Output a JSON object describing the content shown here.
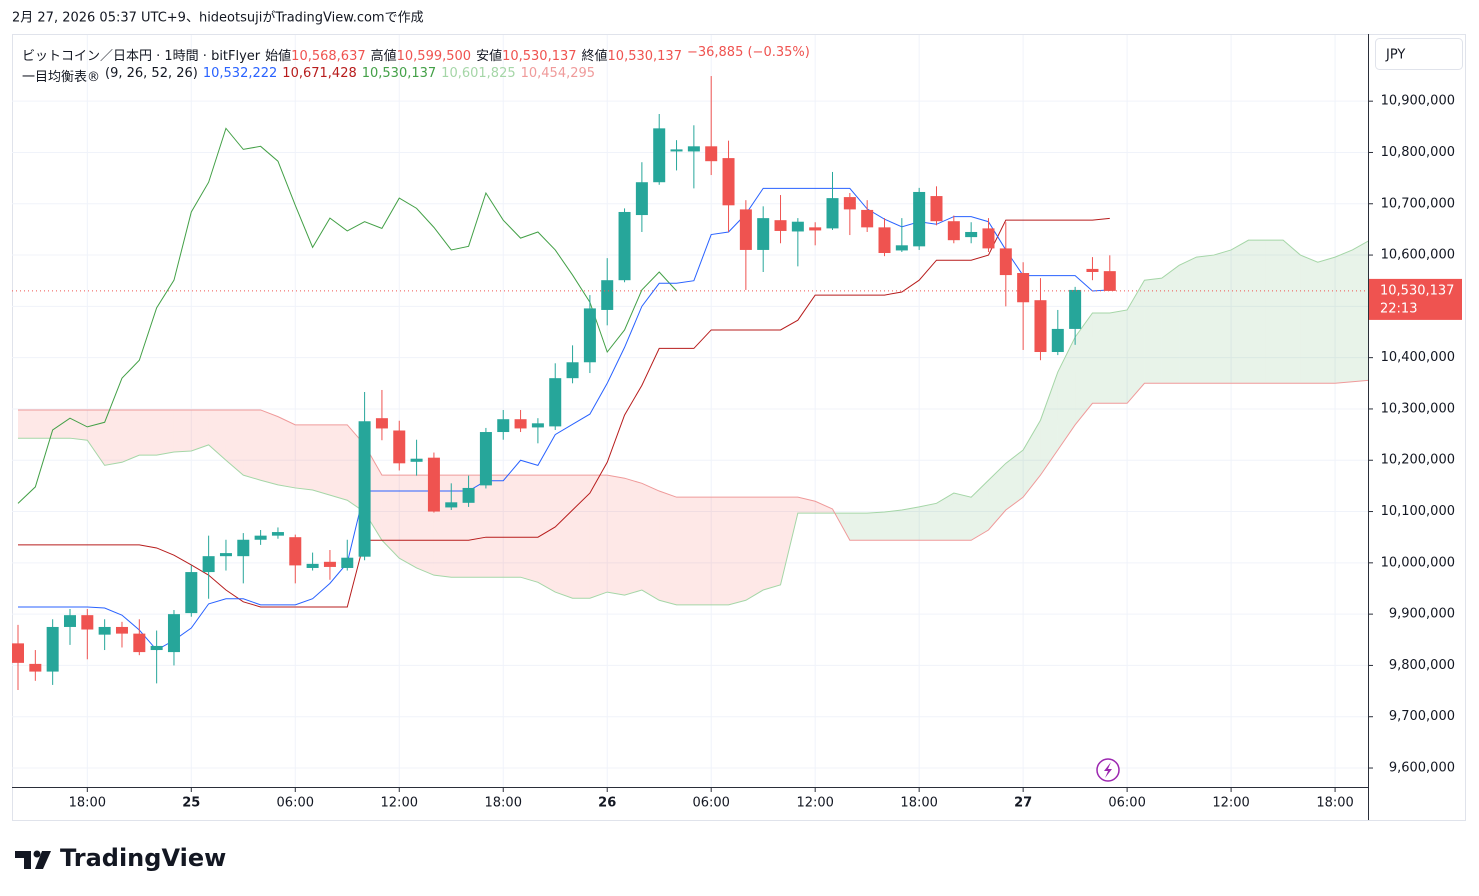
{
  "header": {
    "attribution": "2月 27, 2026 05:37 UTC+9、hideotsujiがTradingView.comで作成",
    "symbol": "ビットコイン／日本円 · 1時間 · bitFlyer",
    "ohlc": [
      {
        "label": "始値",
        "value": "10,568,637"
      },
      {
        "label": "高値",
        "value": "10,599,500"
      },
      {
        "label": "安値",
        "value": "10,530,137"
      },
      {
        "label": "終値",
        "value": "10,530,137"
      }
    ],
    "change": "−36,885 (−0.35%)",
    "indicator": "一目均衡表®",
    "params": "(9, 26, 52, 26)",
    "indicator_values": [
      {
        "value": "10,532,222",
        "color": "#2962ff"
      },
      {
        "value": "10,671,428",
        "color": "#b71c1c"
      },
      {
        "value": "10,530,137",
        "color": "#43a047"
      },
      {
        "value": "10,601,825",
        "color": "#a5d6a7"
      },
      {
        "value": "10,454,295",
        "color": "#ef9a9a"
      }
    ]
  },
  "currency": "JPY",
  "logo": "TradingView",
  "chart_data": {
    "type": "candlestick",
    "categories": [
      null,
      null,
      null,
      null,
      "18:00",
      null,
      null,
      null,
      null,
      null,
      "25",
      null,
      null,
      null,
      null,
      null,
      "06:00",
      null,
      null,
      null,
      null,
      null,
      "12:00",
      null,
      null,
      null,
      null,
      null,
      "18:00",
      null,
      null,
      null,
      null,
      null,
      "26",
      null,
      null,
      null,
      null,
      null,
      "06:00",
      null,
      null,
      null,
      null,
      null,
      "12:00",
      null,
      null,
      null,
      null,
      null,
      "18:00",
      null,
      null,
      null,
      null,
      null,
      "27",
      null,
      null,
      null,
      null,
      null,
      "06:00",
      null,
      null,
      null,
      null,
      null,
      "12:00",
      null,
      null,
      null,
      null,
      null,
      "18:00",
      null,
      null
    ],
    "open": [
      9843000,
      9803000,
      9788000,
      9875000,
      9898000,
      9860000,
      9875000,
      9862000,
      9830000,
      9826000,
      9902000,
      9982000,
      10013000,
      10013000,
      10045000,
      10053000,
      10050000,
      9990000,
      10002000,
      9990000,
      10012000,
      10282000,
      10258000,
      10197000,
      10205000,
      10108000,
      10117000,
      10151000,
      10255000,
      10280000,
      10264000,
      10266000,
      10360000,
      10391000,
      10493000,
      10551000,
      10678000,
      10742000,
      10802000,
      10802000,
      10812000,
      10789000,
      10689000,
      10610000,
      10668000,
      10646000,
      10654000,
      10652000,
      10713000,
      10688000,
      10654000,
      10609000,
      10617000,
      10715000,
      10666000,
      10635000,
      10652000,
      10613000,
      10565000,
      10512000,
      10411000,
      10456000,
      10573000,
      10568637,
      null,
      null,
      null,
      null,
      null,
      null,
      null,
      null,
      null,
      null,
      null,
      null,
      null,
      null,
      null
    ],
    "high": [
      9879000,
      9830000,
      9890000,
      9910000,
      9910000,
      9890000,
      9885000,
      9890000,
      9868000,
      9908000,
      9995000,
      10053000,
      10045000,
      10058000,
      10064000,
      10069000,
      10055000,
      10020000,
      10025000,
      10045000,
      10333000,
      10337000,
      10277000,
      10240000,
      10215000,
      10155000,
      10170000,
      10263000,
      10298000,
      10298000,
      10282000,
      10389000,
      10424000,
      10522000,
      10594000,
      10691000,
      10781000,
      10875000,
      10824000,
      10853000,
      10949000,
      10823000,
      10707000,
      10695000,
      10717000,
      10672000,
      10664000,
      10762000,
      10721000,
      10707000,
      10672000,
      10672000,
      10731000,
      10734000,
      10677000,
      10664000,
      10672000,
      10664000,
      10586000,
      10555000,
      10493000,
      10538000,
      10596000,
      10599500,
      null,
      null,
      null,
      null,
      null,
      null,
      null,
      null,
      null,
      null,
      null,
      null,
      null,
      null,
      null
    ],
    "low": [
      9752000,
      9770000,
      9762000,
      9840000,
      9812000,
      9830000,
      9835000,
      9820000,
      9765000,
      9800000,
      9895000,
      9930000,
      9985000,
      9960000,
      10035000,
      10047000,
      9960000,
      9985000,
      9967000,
      9985000,
      10005000,
      10239000,
      10180000,
      10170000,
      10098000,
      10103000,
      10109000,
      10145000,
      10240000,
      10255000,
      10233000,
      10259000,
      10350000,
      10370000,
      10463000,
      10547000,
      10645000,
      10737000,
      10765000,
      10730000,
      10756000,
      10645000,
      10532000,
      10567000,
      10623000,
      10578000,
      10619000,
      10649000,
      10639000,
      10645000,
      10598000,
      10606000,
      10610000,
      10658000,
      10623000,
      10623000,
      10606000,
      10500000,
      10415000,
      10395000,
      10405000,
      10425000,
      10551000,
      10530137,
      null,
      null,
      null,
      null,
      null,
      null,
      null,
      null,
      null,
      null,
      null,
      null,
      null,
      null,
      null
    ],
    "close": [
      9805000,
      9788000,
      9875000,
      9898000,
      9870000,
      9875000,
      9862000,
      9826000,
      9838000,
      9900000,
      9982000,
      10013000,
      10019000,
      10045000,
      10053000,
      10060000,
      9995000,
      9998000,
      9992000,
      10010000,
      10276000,
      10262000,
      10194000,
      10203000,
      10100000,
      10118000,
      10146000,
      10255000,
      10280000,
      10262000,
      10272000,
      10360000,
      10391000,
      10496000,
      10551000,
      10684000,
      10742000,
      10847000,
      10806000,
      10812000,
      10783000,
      10697000,
      10610000,
      10672000,
      10647000,
      10665000,
      10648000,
      10711000,
      10689000,
      10654000,
      10604000,
      10619000,
      10723000,
      10666000,
      10629000,
      10645000,
      10613000,
      10561000,
      10508000,
      10411000,
      10456000,
      10532000,
      10567000,
      10530137,
      null,
      null,
      null,
      null,
      null,
      null,
      null,
      null,
      null,
      null,
      null,
      null,
      null,
      null,
      null
    ],
    "up_color": "#26a69a",
    "down_color": "#ef5350",
    "ichimoku": {
      "conversion": {
        "color": "#2962ff",
        "values": [
          9914000,
          9914000,
          9914000,
          9914000,
          9914000,
          9912000,
          9898000,
          9869000,
          9830000,
          9849000,
          9873000,
          9920000,
          9930000,
          9930000,
          9918000,
          9918000,
          9918000,
          9930000,
          9960000,
          10000000,
          10140000,
          10140000,
          10140000,
          10140000,
          10140000,
          10140000,
          10140000,
          10160000,
          10160000,
          10200000,
          10190000,
          10250000,
          10270000,
          10290000,
          10350000,
          10420000,
          10500000,
          10545000,
          10545000,
          10550000,
          10640000,
          10645000,
          10680000,
          10730000,
          10730000,
          10730000,
          10730000,
          10730000,
          10730000,
          10690000,
          10670000,
          10655000,
          10665000,
          10660000,
          10675000,
          10675000,
          10665000,
          10610000,
          10560000,
          10560000,
          10560000,
          10560000,
          10530000,
          10532222,
          null,
          null,
          null,
          null,
          null,
          null,
          null,
          null,
          null,
          null,
          null,
          null,
          null,
          null,
          null
        ]
      },
      "base": {
        "color": "#b71c1c",
        "values": [
          10035000,
          10035000,
          10035000,
          10035000,
          10035000,
          10035000,
          10035000,
          10035000,
          10029000,
          10015000,
          9996000,
          9976000,
          9947000,
          9924000,
          9914000,
          9914000,
          9914000,
          9914000,
          9914000,
          9914000,
          10044000,
          10044000,
          10044000,
          10044000,
          10044000,
          10044000,
          10044000,
          10050000,
          10050000,
          10050000,
          10050000,
          10070000,
          10103000,
          10136000,
          10196000,
          10288000,
          10346000,
          10418000,
          10418000,
          10418000,
          10454000,
          10454000,
          10454000,
          10454000,
          10454000,
          10473000,
          10522000,
          10522000,
          10522000,
          10522000,
          10522000,
          10528000,
          10551000,
          10590000,
          10590000,
          10590000,
          10600000,
          10668000,
          10668000,
          10668000,
          10668000,
          10668000,
          10668000,
          10671428,
          null,
          null,
          null,
          null,
          null,
          null,
          null,
          null,
          null,
          null,
          null,
          null,
          null,
          null,
          null
        ]
      },
      "lagging": {
        "color": "#43a047",
        "values": [
          10116000,
          10148000,
          10259000,
          10282000,
          10265000,
          10274000,
          10360000,
          10395000,
          10497000,
          10551000,
          10684000,
          10742000,
          10847000,
          10806000,
          10812000,
          10783000,
          10697000,
          10615000,
          10672000,
          10647000,
          10665000,
          10652000,
          10711000,
          10691000,
          10654000,
          10610000,
          10617000,
          10721000,
          10668000,
          10633000,
          10645000,
          10610000,
          10561000,
          10508000,
          10411000,
          10454000,
          10532000,
          10567000,
          10530137,
          null,
          null,
          null,
          null,
          null,
          null,
          null,
          null,
          null,
          null,
          null,
          null,
          null,
          null,
          null,
          null,
          null,
          null,
          null,
          null,
          null,
          null,
          null,
          null,
          null,
          null,
          null,
          null,
          null,
          null,
          null,
          null,
          null,
          null,
          null,
          null,
          null,
          null,
          null,
          null
        ]
      },
      "span_a": {
        "color": "#a5d6a7",
        "values": [
          10243000,
          10243000,
          10243000,
          10243000,
          10239000,
          10190000,
          10196000,
          10210000,
          10210000,
          10216000,
          10218000,
          10230000,
          10200000,
          10171000,
          10161000,
          10152000,
          10146000,
          10142000,
          10132000,
          10122000,
          10099000,
          10044000,
          10009000,
          9990000,
          9976000,
          9972000,
          9972000,
          9972000,
          9972000,
          9972000,
          9962000,
          9943000,
          9931000,
          9931000,
          9943000,
          9937000,
          9947000,
          9927000,
          9918000,
          9918000,
          9918000,
          9918000,
          9927000,
          9947000,
          9957000,
          10097000,
          10097000,
          10097000,
          10097000,
          10097000,
          10099000,
          10103000,
          10109000,
          10116000,
          10136000,
          10128000,
          10161000,
          10194000,
          10220000,
          10278000,
          10372000,
          10440000,
          10487000,
          10487000,
          10493000,
          10551000,
          10555000,
          10580000,
          10596000,
          10600000,
          10610000,
          10629000,
          10629000,
          10629000,
          10600000,
          10586000,
          10596000,
          10610000,
          10629000
        ]
      },
      "span_b": {
        "color": "#ef9a9a",
        "values": [
          10298000,
          10298000,
          10298000,
          10298000,
          10298000,
          10298000,
          10298000,
          10298000,
          10298000,
          10298000,
          10298000,
          10298000,
          10298000,
          10298000,
          10298000,
          10285000,
          10269000,
          10269000,
          10269000,
          10269000,
          10230000,
          10171000,
          10171000,
          10171000,
          10171000,
          10171000,
          10171000,
          10171000,
          10171000,
          10171000,
          10171000,
          10171000,
          10171000,
          10171000,
          10171000,
          10165000,
          10155000,
          10140000,
          10128000,
          10128000,
          10128000,
          10128000,
          10128000,
          10128000,
          10128000,
          10128000,
          10120000,
          10105000,
          10044000,
          10044000,
          10044000,
          10044000,
          10044000,
          10044000,
          10044000,
          10044000,
          10064000,
          10103000,
          10128000,
          10171000,
          10220000,
          10269000,
          10311000,
          10311000,
          10311000,
          10350000,
          10350000,
          10350000,
          10350000,
          10350000,
          10350000,
          10350000,
          10350000,
          10350000,
          10350000,
          10350000,
          10350000,
          10353000,
          10356000
        ]
      },
      "cloud_up_color": "rgba(67,160,71,0.12)",
      "cloud_down_color": "rgba(244,67,54,0.12)"
    },
    "ylim": [
      9563000,
      11029000
    ],
    "yticks": [
      {
        "value": 9600000,
        "label": "9,600,000"
      },
      {
        "value": 9700000,
        "label": "9,700,000"
      },
      {
        "value": 9800000,
        "label": "9,800,000"
      },
      {
        "value": 9900000,
        "label": "9,900,000"
      },
      {
        "value": 10000000,
        "label": "10,000,000"
      },
      {
        "value": 10100000,
        "label": "10,100,000"
      },
      {
        "value": 10200000,
        "label": "10,200,000"
      },
      {
        "value": 10300000,
        "label": "10,300,000"
      },
      {
        "value": 10400000,
        "label": "10,400,000"
      },
      {
        "value": 10500000,
        "label": "10,500,000"
      },
      {
        "value": 10600000,
        "label": "10,600,000"
      },
      {
        "value": 10700000,
        "label": "10,700,000"
      },
      {
        "value": 10800000,
        "label": "10,800,000"
      },
      {
        "value": 10900000,
        "label": "10,900,000"
      }
    ],
    "last_price_label": {
      "price": "10,530,137",
      "countdown": "22:13"
    },
    "grid": true
  }
}
